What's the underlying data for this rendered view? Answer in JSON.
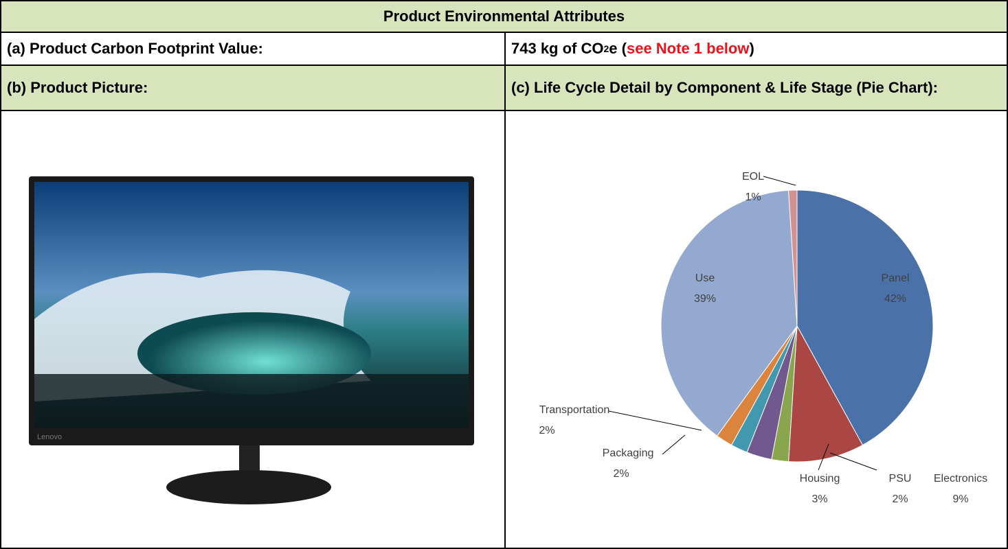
{
  "table": {
    "title": "Product Environmental Attributes",
    "row_a": {
      "label": "(a) Product Carbon Footprint Value:",
      "value_parts": [
        "743 kg of CO",
        "2",
        "e (",
        "see Note 1 below",
        ")"
      ]
    },
    "row_b": {
      "label": "(b) Product Picture:",
      "chart_heading": "(c) Life Cycle Detail by Component & Life Stage (Pie Chart):"
    },
    "picture_brand": "Lenovo"
  },
  "chart_data": {
    "type": "pie",
    "categories": [
      "Panel",
      "Electronics",
      "PSU",
      "Housing",
      "Packaging",
      "Transportation",
      "Use",
      "EOL"
    ],
    "values": [
      42,
      9,
      2,
      3,
      2,
      2,
      39,
      1
    ],
    "value_labels": [
      "42%",
      "9%",
      "2%",
      "3%",
      "2%",
      "2%",
      "39%",
      "1%"
    ],
    "colors": [
      "#4a72a8",
      "#aa4643",
      "#89a54e",
      "#71588f",
      "#4198af",
      "#db843d",
      "#93a9cf",
      "#d19392"
    ]
  }
}
